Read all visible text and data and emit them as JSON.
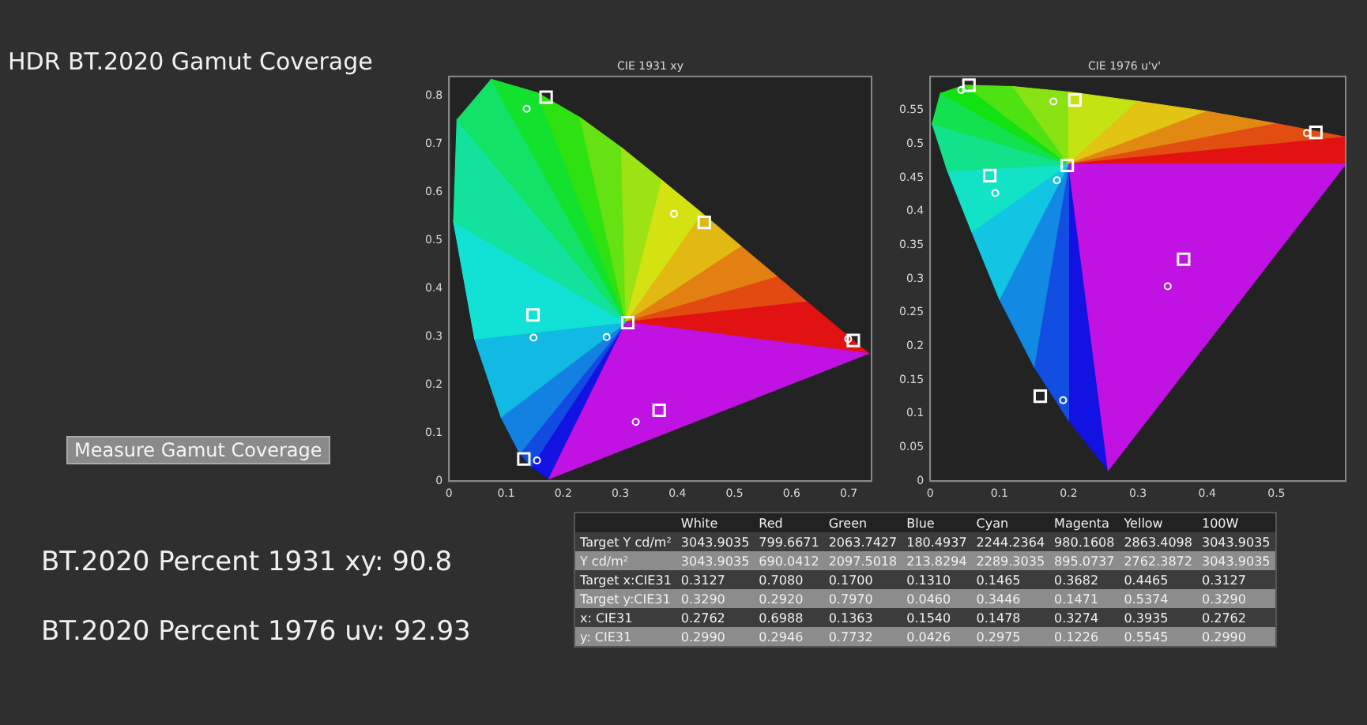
{
  "chart_data": [
    {
      "type": "other",
      "title": "HDR BT.2020  Gamut Coverage",
      "annotations": [
        "Measure Gamut Coverage",
        "BT.2020 Percent 1931 xy: 90.8",
        "BT.2020 Percent 1976 uv: 92.93"
      ]
    },
    {
      "type": "scatter",
      "title": "CIE 1931 xy",
      "xlim": [
        0,
        0.74
      ],
      "ylim": [
        0,
        0.84
      ],
      "xticks": [
        0,
        0.1,
        0.2,
        0.3,
        0.4,
        0.5,
        0.6,
        0.7
      ],
      "yticks": [
        0,
        0.1,
        0.2,
        0.3,
        0.4,
        0.5,
        0.6,
        0.7,
        0.8
      ],
      "grid": false,
      "legend": false,
      "series": [
        {
          "color": "#ffffff",
          "marker": "square",
          "x": [
            0.313,
            0.708,
            0.17,
            0.131,
            0.147,
            0.368,
            0.447
          ],
          "values": [
            0.329,
            0.292,
            0.797,
            0.046,
            0.345,
            0.147,
            0.537
          ]
        },
        {
          "color": "#ffffff",
          "marker": "circle",
          "x": [
            0.276,
            0.699,
            0.136,
            0.154,
            0.148,
            0.327,
            0.394
          ],
          "values": [
            0.299,
            0.295,
            0.773,
            0.043,
            0.298,
            0.123,
            0.555
          ]
        }
      ]
    },
    {
      "type": "scatter",
      "title": "CIE 1976 u'v'",
      "xlim": [
        0,
        0.6
      ],
      "ylim": [
        0,
        0.6
      ],
      "xticks": [
        0,
        0.1,
        0.2,
        0.3,
        0.4,
        0.5
      ],
      "yticks": [
        0,
        0.05,
        0.1,
        0.15,
        0.2,
        0.25,
        0.3,
        0.35,
        0.4,
        0.45,
        0.5,
        0.55
      ],
      "grid": false,
      "legend": false,
      "series": [
        {
          "color": "#ffffff",
          "marker": "square",
          "x": [
            0.198,
            0.557,
            0.056,
            0.159,
            0.086,
            0.366,
            0.209
          ],
          "values": [
            0.468,
            0.517,
            0.587,
            0.126,
            0.453,
            0.329,
            0.565
          ]
        },
        {
          "color": "#ffffff",
          "marker": "circle",
          "x": [
            0.183,
            0.544,
            0.045,
            0.192,
            0.094,
            0.343,
            0.178
          ],
          "values": [
            0.446,
            0.516,
            0.58,
            0.12,
            0.427,
            0.289,
            0.563
          ]
        }
      ]
    },
    {
      "type": "other",
      "categories": [
        "White",
        "Red",
        "Green",
        "Blue",
        "Cyan",
        "Magenta",
        "Yellow",
        "100W"
      ],
      "y_categories": [
        "Target Y cd/m²",
        "Y cd/m²",
        "Target x:CIE31",
        "Target y:CIE31",
        "x: CIE31",
        "y: CIE31"
      ],
      "cell_labels": [
        [
          "3043.9035",
          "799.6671",
          "2063.7427",
          "180.4937",
          "2244.2364",
          "980.1608",
          "2863.4098",
          "3043.9035"
        ],
        [
          "3043.9035",
          "690.0412",
          "2097.5018",
          "213.8294",
          "2289.3035",
          "895.0737",
          "2762.3872",
          "3043.9035"
        ],
        [
          "0.3127",
          "0.7080",
          "0.1700",
          "0.1310",
          "0.1465",
          "0.3682",
          "0.4465",
          "0.3127"
        ],
        [
          "0.3290",
          "0.2920",
          "0.7970",
          "0.0460",
          "0.3446",
          "0.1471",
          "0.5374",
          "0.3290"
        ],
        [
          "0.2762",
          "0.6988",
          "0.1363",
          "0.1540",
          "0.1478",
          "0.3274",
          "0.3935",
          "0.2762"
        ],
        [
          "0.2990",
          "0.2946",
          "0.7732",
          "0.0426",
          "0.2975",
          "0.1226",
          "0.5545",
          "0.2990"
        ]
      ]
    }
  ]
}
